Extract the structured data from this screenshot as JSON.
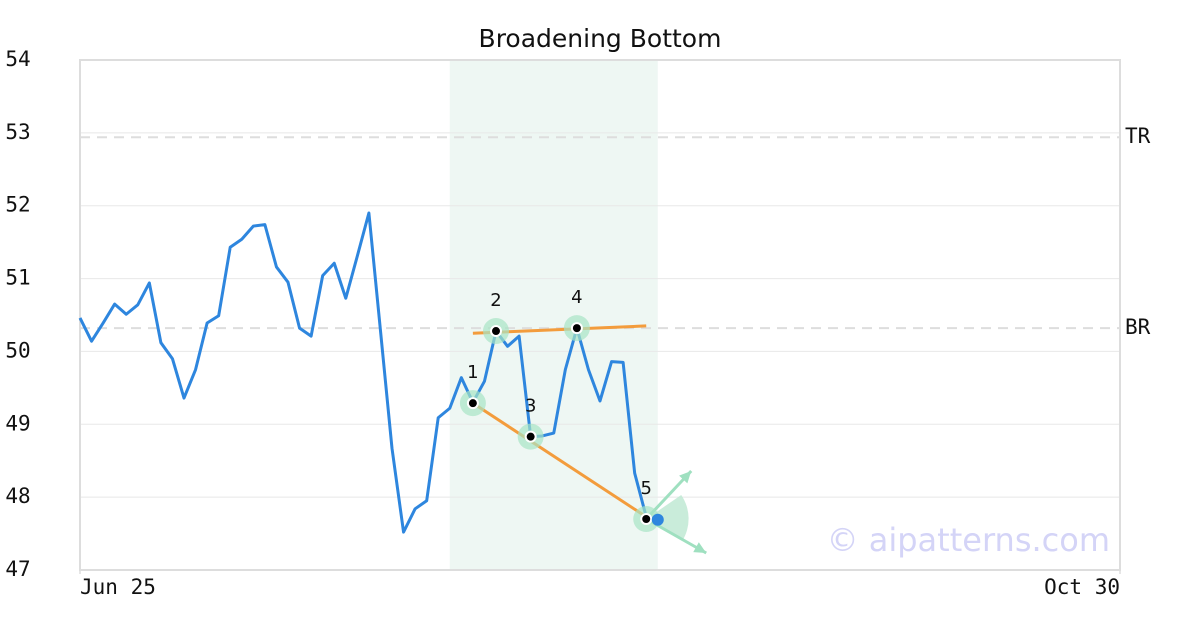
{
  "chart_data": {
    "type": "line",
    "title": "Broadening Bottom",
    "x": [
      0,
      1,
      2,
      3,
      4,
      5,
      6,
      7,
      8,
      9,
      10,
      11,
      12,
      13,
      14,
      15,
      16,
      17,
      18,
      19,
      20,
      21,
      22,
      23,
      24,
      25,
      26,
      27,
      28,
      29,
      30,
      31,
      32,
      33,
      34,
      35,
      36,
      37,
      38,
      39,
      40,
      41,
      42,
      43,
      44,
      45,
      46,
      47,
      48,
      49,
      50
    ],
    "xlim": [
      0,
      90
    ],
    "xticks": [
      {
        "value": 0,
        "label": "Jun 25"
      },
      {
        "value": 90,
        "label": "Oct 30"
      }
    ],
    "ylim": [
      47,
      54
    ],
    "yticks": [
      47,
      48,
      49,
      50,
      51,
      52,
      53,
      54
    ],
    "grid": true,
    "series": [
      {
        "color": "#2e86de",
        "values": [
          50.46,
          50.14,
          50.39,
          50.65,
          50.51,
          50.64,
          50.94,
          50.12,
          49.9,
          49.36,
          49.75,
          50.39,
          50.49,
          51.43,
          51.54,
          51.72,
          51.74,
          51.16,
          50.95,
          50.32,
          50.21,
          51.04,
          51.21,
          50.73,
          51.31,
          51.9,
          50.29,
          48.67,
          47.52,
          47.84,
          47.95,
          49.09,
          49.22,
          49.64,
          49.3,
          49.59,
          50.28,
          50.07,
          50.21,
          48.83,
          48.84,
          48.88,
          49.75,
          50.32,
          49.75,
          49.32,
          49.86,
          49.85,
          48.33,
          47.73,
          47.69
        ]
      }
    ],
    "highlight_x": [
      32,
      50
    ],
    "levels": [
      {
        "label": "TR",
        "value": 52.94
      },
      {
        "label": "BR",
        "value": 50.32
      }
    ],
    "trend_color": "#f39c3c",
    "trend_lines": [
      {
        "x": [
          34,
          49
        ],
        "y": [
          50.25,
          50.35
        ]
      },
      {
        "x": [
          34,
          49
        ],
        "y": [
          49.29,
          47.73
        ]
      }
    ],
    "pivots": [
      {
        "label": "1",
        "x": 34,
        "y": 49.29
      },
      {
        "label": "2",
        "x": 36,
        "y": 50.28
      },
      {
        "label": "3",
        "x": 39,
        "y": 48.83
      },
      {
        "label": "4",
        "x": 43,
        "y": 50.32
      },
      {
        "label": "5",
        "x": 49,
        "y": 47.7
      }
    ],
    "watermark": "© aipatterns.com"
  }
}
